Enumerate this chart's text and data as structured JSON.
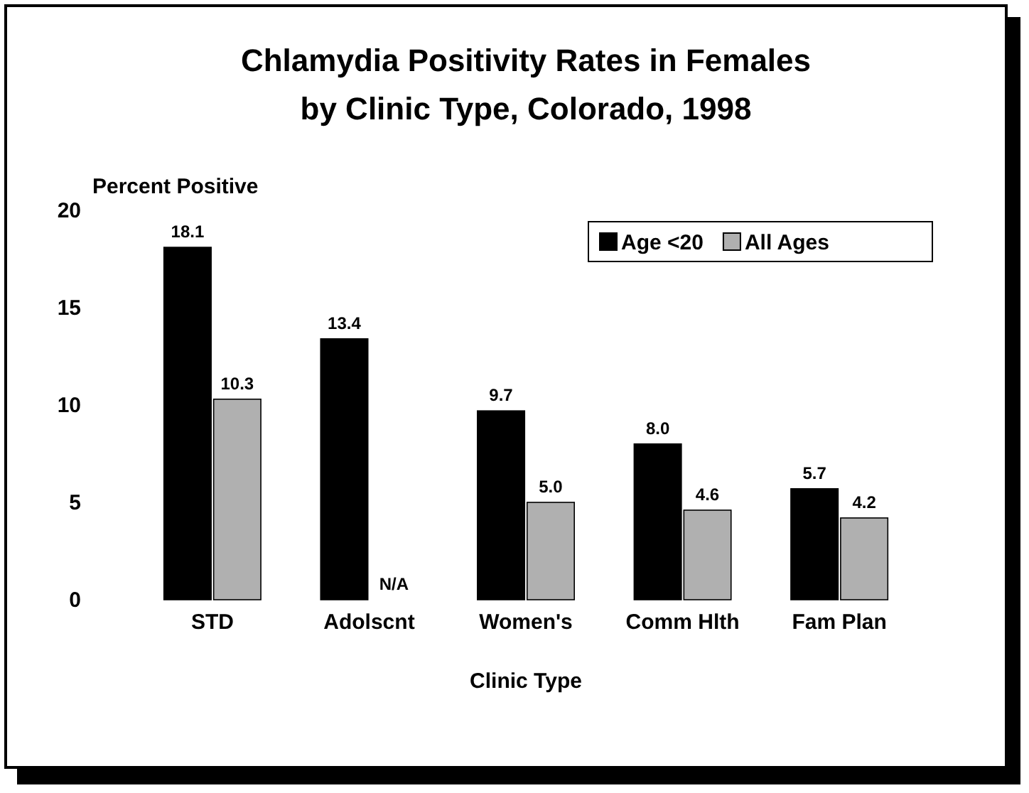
{
  "chart_data": {
    "type": "bar",
    "title": "Chlamydia Positivity Rates in Females\nby Clinic Type, Colorado, 1998",
    "ylabel": "Percent Positive",
    "xlabel": "Clinic Type",
    "categories": [
      "STD",
      "Adolscnt",
      "Women's",
      "Comm Hlth",
      "Fam Plan"
    ],
    "series": [
      {
        "name": "Age <20",
        "color": "#000000",
        "values": [
          18.1,
          13.4,
          9.7,
          8.0,
          5.7
        ],
        "value_labels": [
          "18.1",
          "13.4",
          "9.7",
          "8.0",
          "5.7"
        ]
      },
      {
        "name": "All Ages",
        "color": "#b0b0b0",
        "values": [
          10.3,
          null,
          5.0,
          4.6,
          4.2
        ],
        "value_labels": [
          "10.3",
          "N/A",
          "5.0",
          "4.6",
          "4.2"
        ]
      }
    ],
    "ylim": [
      0,
      20
    ],
    "yticks": [
      0,
      5,
      10,
      15,
      20
    ],
    "grid": false,
    "legend": "top right"
  }
}
